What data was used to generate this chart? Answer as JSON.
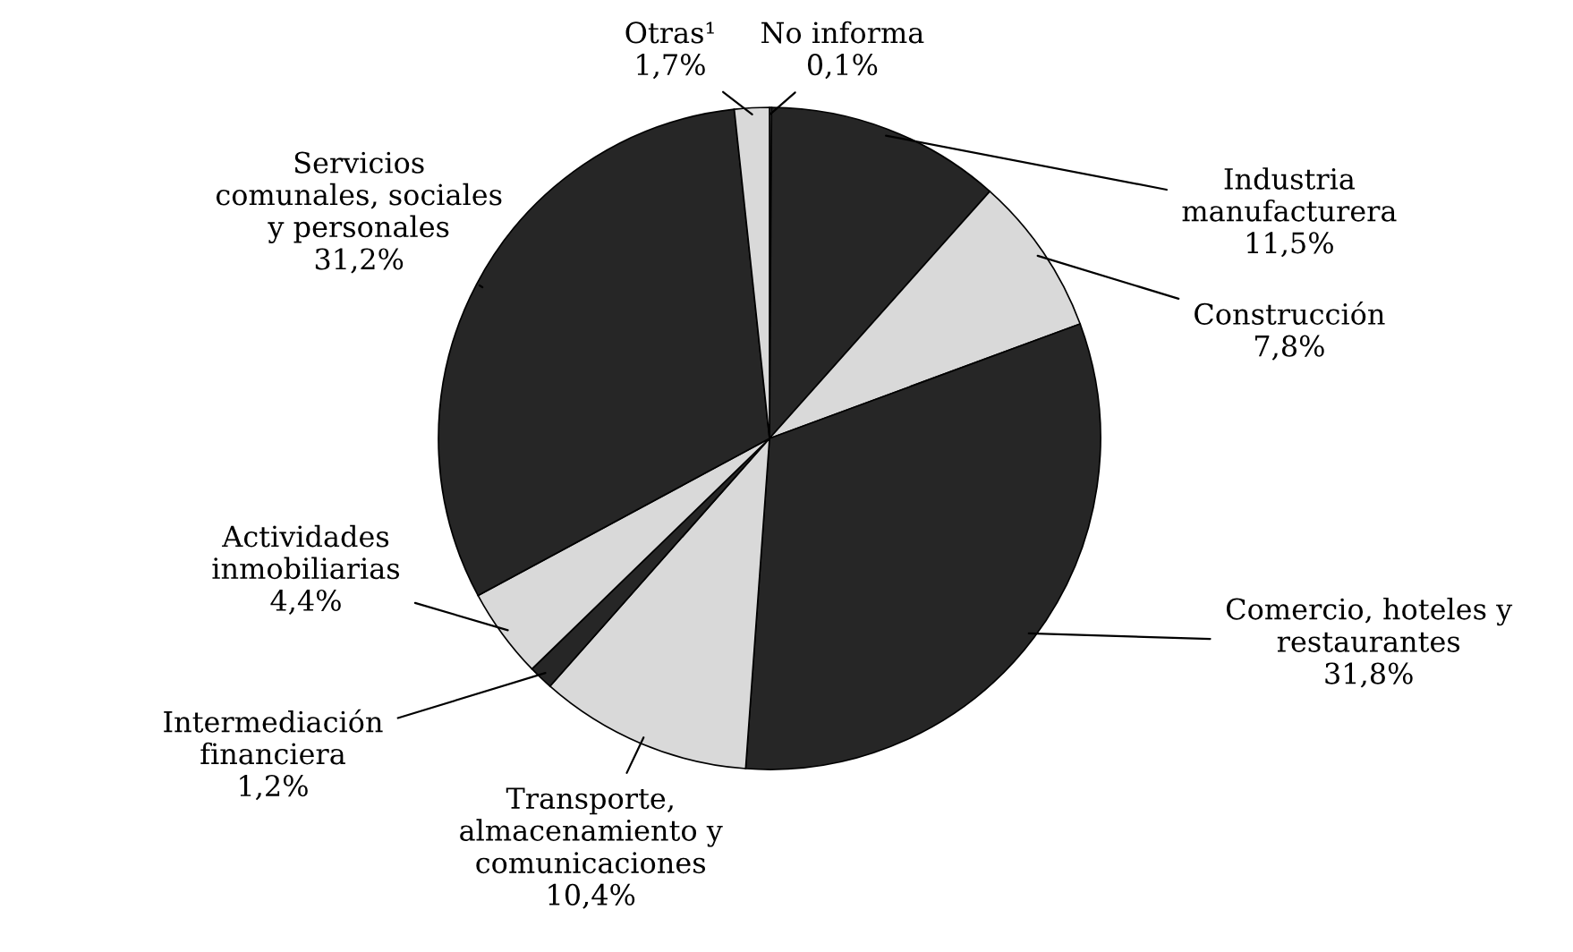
{
  "chart_data": {
    "type": "pie",
    "categories": [
      "No informa",
      "Industria\nmanufacturera",
      "Construcción",
      "Comercio, hoteles y\nrestaurantes",
      "Transporte,\nalmacenamiento y\ncomunicaciones",
      "Intermediación\nfinanciera",
      "Actividades\ninmobiliarias",
      "Servicios\ncomunales, sociales\ny personales",
      "Otras¹"
    ],
    "values": [
      0.1,
      11.5,
      7.8,
      31.8,
      10.4,
      1.2,
      4.4,
      31.2,
      1.7
    ],
    "value_labels": [
      "0,1%",
      "11,5%",
      "7,8%",
      "31,8%",
      "10,4%",
      "1,2%",
      "4,4%",
      "31,2%",
      "1,7%"
    ],
    "colors": [
      "#d9d9d9",
      "#262626",
      "#d9d9d9",
      "#262626",
      "#d9d9d9",
      "#262626",
      "#d9d9d9",
      "#262626",
      "#d9d9d9"
    ]
  }
}
